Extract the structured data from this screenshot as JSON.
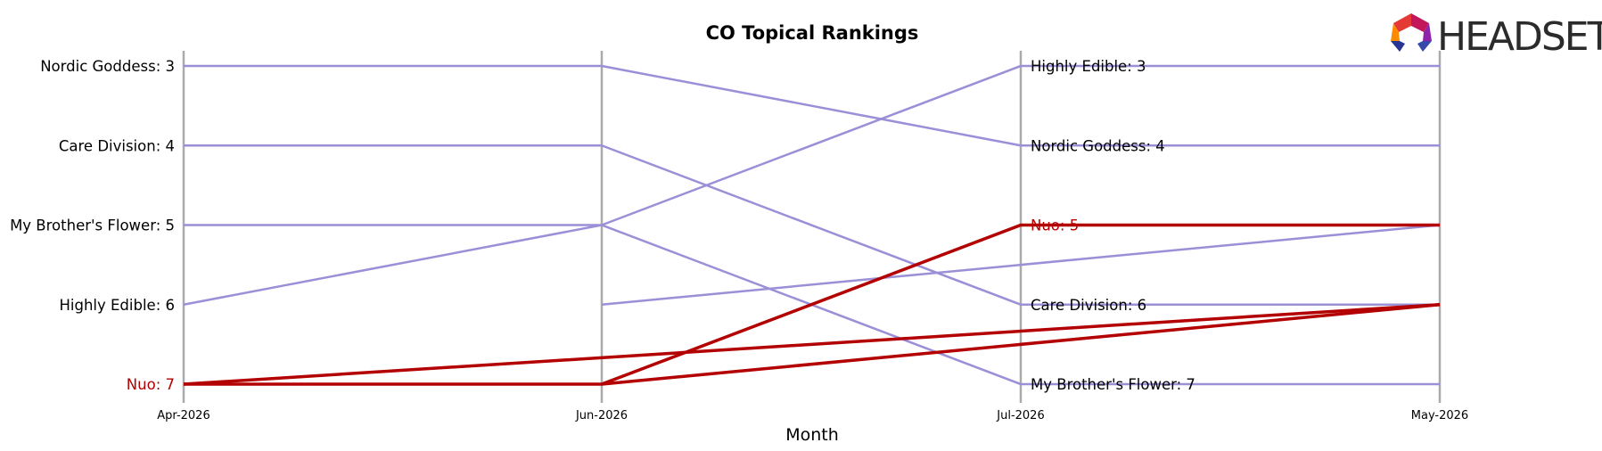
{
  "chart_data": {
    "type": "line",
    "title": "CO Topical Rankings",
    "xlabel": "Month",
    "ylabel": "",
    "categories": [
      "Apr-2026",
      "Jun-2026",
      "Jul-2026",
      "May-2026"
    ],
    "ylim": [
      7,
      3
    ],
    "y_inverted": true,
    "grid": false,
    "highlight_color": "#b30000",
    "base_color": "#9b8fd8",
    "axis_color": "#aaaaaa",
    "series": [
      {
        "name": "Nordic Goddess",
        "values": [
          3,
          3,
          4,
          4
        ],
        "highlight": false
      },
      {
        "name": "Care Division",
        "values": [
          4,
          4,
          6,
          6
        ],
        "highlight": false
      },
      {
        "name": "My Brother's Flower",
        "values": [
          5,
          5,
          7,
          7
        ],
        "highlight": false
      },
      {
        "name": "Highly Edible",
        "values": [
          6,
          5,
          3,
          3
        ],
        "highlight": false
      },
      {
        "name": "Nuo",
        "values": [
          7,
          7,
          5,
          5
        ],
        "highlight": true
      },
      {
        "name": "",
        "values": [
          null,
          6,
          null,
          5
        ],
        "highlight": false
      },
      {
        "name": "",
        "values": [
          7,
          null,
          null,
          6
        ],
        "highlight": true
      },
      {
        "name": "",
        "values": [
          null,
          7,
          null,
          6
        ],
        "highlight": true
      }
    ],
    "left_labels": [
      {
        "text": "Nordic Goddess: 3",
        "y": 3,
        "highlight": false
      },
      {
        "text": "Care Division: 4",
        "y": 4,
        "highlight": false
      },
      {
        "text": "My Brother's Flower: 5",
        "y": 5,
        "highlight": false
      },
      {
        "text": "Highly Edible: 6",
        "y": 6,
        "highlight": false
      },
      {
        "text": "Nuo: 7",
        "y": 7,
        "highlight": true
      }
    ],
    "right_labels": [
      {
        "text": "Highly Edible: 3",
        "y": 3,
        "highlight": false
      },
      {
        "text": "Nordic Goddess: 4",
        "y": 4,
        "highlight": false
      },
      {
        "text": "Nuo: 5",
        "y": 5,
        "highlight": true
      },
      {
        "text": "Care Division: 6",
        "y": 6,
        "highlight": false
      },
      {
        "text": "My Brother's Flower: 7",
        "y": 7,
        "highlight": false
      }
    ]
  },
  "logo": {
    "text": "HEADSET"
  }
}
